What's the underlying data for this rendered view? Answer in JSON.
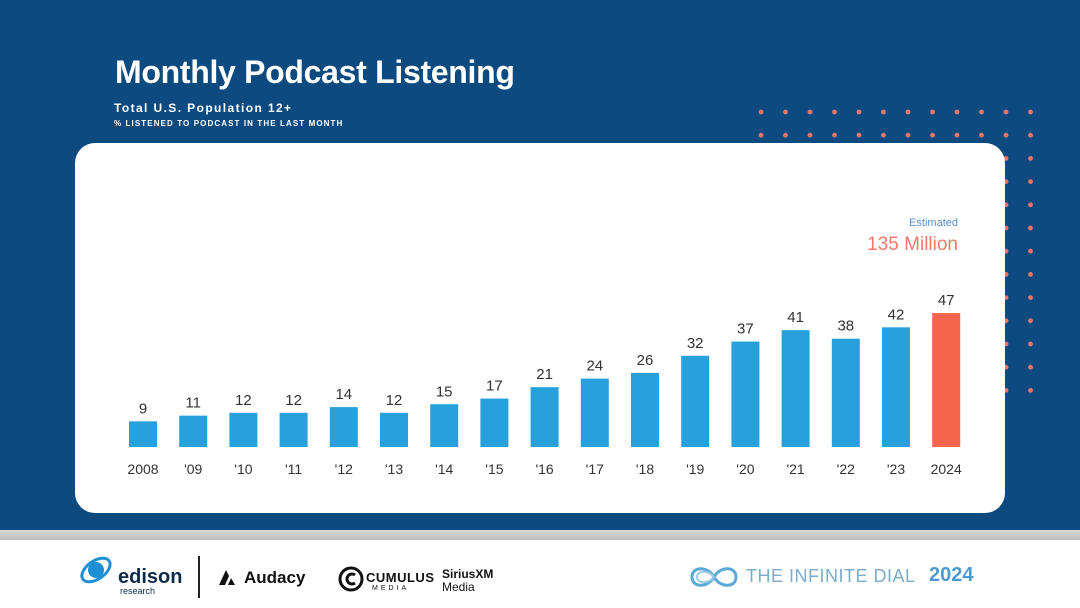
{
  "header": {
    "title": "Monthly Podcast Listening",
    "subtitle": "Total U.S. Population 12+",
    "subtitle2": "% Listened to Podcast in the Last Month"
  },
  "annotation": {
    "label": "Estimated",
    "value": "135 Million"
  },
  "chart_data": {
    "type": "bar",
    "title": "Monthly Podcast Listening",
    "categories": [
      "2008",
      "'09",
      "'10",
      "'11",
      "'12",
      "'13",
      "'14",
      "'15",
      "'16",
      "'17",
      "'18",
      "'19",
      "'20",
      "'21",
      "'22",
      "'23",
      "2024"
    ],
    "values": [
      9,
      11,
      12,
      12,
      14,
      12,
      15,
      17,
      21,
      24,
      26,
      32,
      37,
      41,
      38,
      42,
      47
    ],
    "ylim": [
      0,
      50
    ],
    "grid": false,
    "bar_color": "#27a0dc",
    "highlight_index": 16,
    "highlight_color": "#f4654e"
  },
  "footer": {
    "edison_name": "edison",
    "edison_sub": "research",
    "audacy": "Audacy",
    "cumulus": "CUMULUS",
    "cumulus_sub": "MEDIA",
    "siriusxm": "SiriusXM",
    "siriusxm_sub": "Media",
    "dial_text": "THE INFINITE DIAL",
    "dial_year": "2024"
  },
  "colors": {
    "background": "#0c4a80",
    "accent_dots": "#e8756a"
  }
}
